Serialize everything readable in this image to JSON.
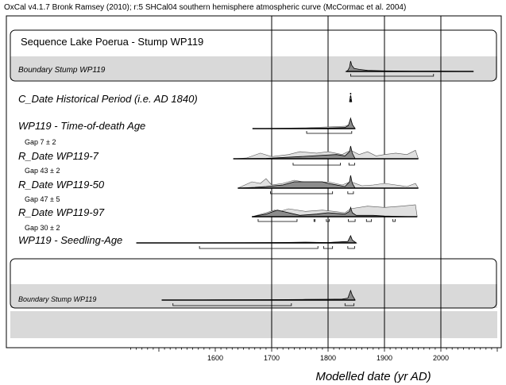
{
  "header": "OxCal v4.1.7 Bronk Ramsey (2010); r:5 SHCal04 southern hemisphere atmospheric curve (McCormac et al. 2004)",
  "chart_data": {
    "type": "area",
    "xlabel": "Modelled date (yr AD)",
    "xlim": [
      1440,
      2100
    ],
    "x_ticks": [
      1600,
      1700,
      1800,
      1900,
      2000
    ],
    "x_gridlines": [
      1700,
      1800,
      1900,
      2000
    ],
    "groups": [
      {
        "label": "Sequence Lake Poerua - Stump WP119"
      },
      {
        "label": ""
      }
    ],
    "rows": [
      {
        "label": "Boundary Stump WP119",
        "style": "italic-small",
        "shaded": true,
        "posterior": [
          [
            1832,
            0
          ],
          [
            1835,
            1
          ],
          [
            1838,
            4
          ],
          [
            1840,
            10
          ],
          [
            1842,
            6
          ],
          [
            1846,
            3
          ],
          [
            1855,
            2
          ],
          [
            1870,
            1
          ],
          [
            1900,
            0.5
          ],
          [
            1950,
            0.3
          ],
          [
            2000,
            0.2
          ],
          [
            2055,
            0
          ]
        ],
        "likelihood": [
          [
            1832,
            0
          ],
          [
            2058,
            0
          ]
        ],
        "ranges": [
          [
            1840,
            1987
          ]
        ]
      },
      {
        "label": "C_Date Historical Period  (i.e. AD 1840)",
        "style": "italic-large",
        "shaded": false,
        "posterior": [
          [
            1838,
            0
          ],
          [
            1840,
            12
          ],
          [
            1842,
            0
          ]
        ],
        "likelihood": [],
        "ranges": []
      },
      {
        "label": "WP119 - Time-of-death Age",
        "style": "italic-large",
        "shaded": false,
        "posterior": [
          [
            1666,
            0
          ],
          [
            1750,
            0.2
          ],
          [
            1800,
            0.5
          ],
          [
            1830,
            1
          ],
          [
            1836,
            3
          ],
          [
            1840,
            10
          ],
          [
            1843,
            4
          ],
          [
            1848,
            0
          ]
        ],
        "likelihood": [
          [
            1666,
            0
          ],
          [
            1760,
            0.8
          ],
          [
            1800,
            1.6
          ],
          [
            1830,
            2.2
          ],
          [
            1838,
            4
          ],
          [
            1840,
            10
          ],
          [
            1844,
            3
          ],
          [
            1848,
            0
          ]
        ],
        "ranges": [
          [
            1762,
            1842
          ]
        ]
      },
      {
        "label": "R_Date WP119-7",
        "gap": "Gap 7 ± 2",
        "style": "italic-large",
        "shaded": false,
        "posterior": [
          [
            1632,
            0
          ],
          [
            1690,
            0.3
          ],
          [
            1750,
            1.5
          ],
          [
            1790,
            2.5
          ],
          [
            1815,
            3
          ],
          [
            1830,
            2
          ],
          [
            1838,
            5
          ],
          [
            1840,
            9
          ],
          [
            1843,
            4
          ],
          [
            1848,
            0
          ]
        ],
        "likelihood": [
          [
            1632,
            0
          ],
          [
            1655,
            0.5
          ],
          [
            1680,
            4
          ],
          [
            1700,
            1.5
          ],
          [
            1730,
            3
          ],
          [
            1750,
            5
          ],
          [
            1780,
            4
          ],
          [
            1800,
            5
          ],
          [
            1825,
            3
          ],
          [
            1840,
            6
          ],
          [
            1855,
            3
          ],
          [
            1870,
            5
          ],
          [
            1885,
            2
          ],
          [
            1900,
            3
          ],
          [
            1920,
            4
          ],
          [
            1940,
            3
          ],
          [
            1955,
            6
          ],
          [
            1960,
            0
          ]
        ],
        "ranges": [
          [
            1738,
            1822
          ],
          [
            1837,
            1847
          ]
        ]
      },
      {
        "label": "R_Date WP119-50",
        "gap": "Gap 43 ± 2",
        "style": "italic-large",
        "shaded": false,
        "posterior": [
          [
            1640,
            0
          ],
          [
            1670,
            0.5
          ],
          [
            1690,
            1
          ],
          [
            1720,
            2
          ],
          [
            1740,
            4
          ],
          [
            1760,
            4
          ],
          [
            1790,
            4
          ],
          [
            1800,
            3
          ],
          [
            1815,
            2
          ],
          [
            1830,
            1
          ],
          [
            1838,
            4
          ],
          [
            1840,
            8
          ],
          [
            1843,
            3
          ],
          [
            1848,
            0
          ]
        ],
        "likelihood": [
          [
            1640,
            0
          ],
          [
            1665,
            4
          ],
          [
            1680,
            3
          ],
          [
            1690,
            6
          ],
          [
            1700,
            2
          ],
          [
            1720,
            3
          ],
          [
            1740,
            5
          ],
          [
            1770,
            3
          ],
          [
            1800,
            4
          ],
          [
            1825,
            2
          ],
          [
            1840,
            4
          ],
          [
            1860,
            1.5
          ],
          [
            1880,
            2
          ],
          [
            1900,
            3
          ],
          [
            1920,
            2
          ],
          [
            1940,
            1
          ],
          [
            1955,
            3
          ],
          [
            1960,
            0
          ]
        ],
        "ranges": [
          [
            1698,
            1808
          ],
          [
            1835,
            1845
          ]
        ]
      },
      {
        "label": "R_Date WP119-97",
        "gap": "Gap 47 ± 5",
        "style": "italic-large",
        "shaded": false,
        "posterior": [
          [
            1665,
            0
          ],
          [
            1690,
            2
          ],
          [
            1710,
            5
          ],
          [
            1730,
            3
          ],
          [
            1750,
            1
          ],
          [
            1780,
            2
          ],
          [
            1800,
            3
          ],
          [
            1830,
            2
          ],
          [
            1838,
            4
          ],
          [
            1840,
            7
          ],
          [
            1843,
            3
          ],
          [
            1850,
            1
          ],
          [
            1880,
            1
          ],
          [
            1900,
            0.5
          ],
          [
            1950,
            0
          ]
        ],
        "likelihood": [
          [
            1665,
            0
          ],
          [
            1690,
            3
          ],
          [
            1705,
            5
          ],
          [
            1715,
            4
          ],
          [
            1730,
            6
          ],
          [
            1760,
            4
          ],
          [
            1790,
            5
          ],
          [
            1810,
            4
          ],
          [
            1830,
            3
          ],
          [
            1840,
            6
          ],
          [
            1870,
            8
          ],
          [
            1900,
            7
          ],
          [
            1930,
            8
          ],
          [
            1955,
            9
          ],
          [
            1958,
            0
          ]
        ],
        "ranges": [
          [
            1676,
            1745
          ],
          [
            1775,
            1777
          ],
          [
            1797,
            1802
          ],
          [
            1836,
            1848
          ],
          [
            1868,
            1877
          ],
          [
            1915,
            1919
          ]
        ]
      },
      {
        "label": "WP119 - Seedling-Age",
        "gap": "Gap 30 ± 2",
        "style": "italic-large",
        "shaded": false,
        "posterior": [
          [
            1460,
            0
          ],
          [
            1650,
            0.1
          ],
          [
            1700,
            0.2
          ],
          [
            1760,
            0.5
          ],
          [
            1800,
            0.3
          ],
          [
            1835,
            1
          ],
          [
            1840,
            5
          ],
          [
            1843,
            2
          ],
          [
            1850,
            0
          ]
        ],
        "likelihood": [
          [
            1460,
            0
          ],
          [
            1650,
            0.1
          ],
          [
            1700,
            0.2
          ],
          [
            1760,
            0.5
          ],
          [
            1800,
            0.3
          ],
          [
            1835,
            1
          ],
          [
            1840,
            5
          ],
          [
            1843,
            2
          ],
          [
            1850,
            0
          ]
        ],
        "ranges": [
          [
            1572,
            1782
          ],
          [
            1792,
            1808
          ],
          [
            1835,
            1847
          ]
        ]
      },
      {
        "label": "Boundary Stump WP119",
        "style": "italic-small",
        "shaded": true,
        "posterior": [
          [
            1505,
            0
          ],
          [
            1600,
            0.2
          ],
          [
            1700,
            0.4
          ],
          [
            1760,
            0.7
          ],
          [
            1800,
            0.8
          ],
          [
            1825,
            1
          ],
          [
            1835,
            2
          ],
          [
            1840,
            10
          ],
          [
            1843,
            5
          ],
          [
            1848,
            0
          ]
        ],
        "likelihood": [
          [
            1505,
            0
          ],
          [
            1848,
            0
          ]
        ],
        "ranges": [
          [
            1525,
            1735
          ],
          [
            1830,
            1846
          ]
        ]
      }
    ]
  }
}
